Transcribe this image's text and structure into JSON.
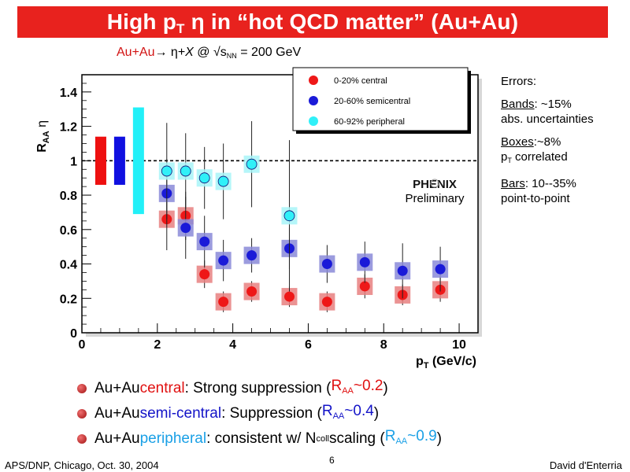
{
  "slide": {
    "title_prefix": "High p",
    "title_sub": "T",
    "title_suffix": " η in “hot QCD matter” (Au+Au)",
    "reaction_aa": "Au+Au",
    "reaction_mid": "→ η+",
    "reaction_x": "X",
    "reaction_at": " @ √s",
    "reaction_sub": "NN",
    "reaction_energy": " = 200 GeV"
  },
  "notes": {
    "errors": "Errors:",
    "bands_key": "Bands",
    "bands_val": ": ~15%",
    "bands_line2": "abs. uncertainties",
    "boxes_key": "Boxes",
    "boxes_val": ":~8%",
    "boxes_line2_p": "p",
    "boxes_line2_sub": "T",
    "boxes_line2_rest": " correlated",
    "bars_key": "Bars",
    "bars_val": ": 10--35%",
    "bars_line2": "point-to-point"
  },
  "bullets": [
    {
      "pre": "Au+Au ",
      "key": "central",
      "mid": ": Strong suppression (",
      "r": "R",
      "rsub": "AA",
      "val": "~0.2",
      "post": ")"
    },
    {
      "pre": "Au+Au ",
      "key": "semi-central",
      "mid": ": Suppression (",
      "r": "R",
      "rsub": "AA",
      "val": "~0.4",
      "post": ")"
    },
    {
      "pre": "Au+Au ",
      "key": "peripheral",
      "mid": ": consistent w/ N",
      "nsub": "coll",
      "mid2": " scaling (",
      "r": "R",
      "rsub": "AA",
      "val": "~0.9",
      "post": ")"
    }
  ],
  "footer": {
    "left": "APS/DNP, Chicago, Oct. 30, 2004",
    "page": "6",
    "right": "David d'Enterria"
  },
  "colors": {
    "title_bg": "#e8221e",
    "central": "#e01010",
    "semicentral": "#1414c8",
    "peripheral": "#1aa0e6"
  },
  "chart_data": {
    "type": "scatter",
    "xlabel_p": "p",
    "xlabel_sub": "T",
    "xlabel_unit": " (GeV/c)",
    "ylabel_r": "R",
    "ylabel_sub": "AA",
    "ylabel_eta": " η",
    "xlim": [
      0,
      10.5
    ],
    "ylim": [
      0,
      1.5
    ],
    "x_ticks": [
      "0",
      "2",
      "4",
      "6",
      "8",
      "10"
    ],
    "y_ticks": [
      "0",
      "0.2",
      "0.4",
      "0.6",
      "0.8",
      "1",
      "1.2",
      "1.4"
    ],
    "reference_line": 1.0,
    "legend_position": "top-right",
    "watermark_logo": "PHENIX",
    "watermark_text": "Preliminary",
    "bands": [
      {
        "series": 0,
        "x": 0.5,
        "ylow": 0.86,
        "yhigh": 1.14
      },
      {
        "series": 1,
        "x": 1.0,
        "ylow": 0.86,
        "yhigh": 1.14
      },
      {
        "series": 2,
        "x": 1.5,
        "ylow": 0.69,
        "yhigh": 1.31
      }
    ],
    "series": [
      {
        "name": "0-20% central",
        "color": "#e01010",
        "x": [
          2.25,
          2.75,
          3.25,
          3.75,
          4.5,
          5.5,
          6.5,
          7.5,
          8.5,
          9.5
        ],
        "y": [
          0.66,
          0.68,
          0.34,
          0.18,
          0.24,
          0.21,
          0.18,
          0.27,
          0.22,
          0.25
        ],
        "err": [
          0.18,
          0.14,
          0.08,
          0.06,
          0.06,
          0.06,
          0.06,
          0.07,
          0.06,
          0.07
        ]
      },
      {
        "name": "20-60% semicentral",
        "color": "#1414c8",
        "x": [
          2.25,
          2.75,
          3.25,
          3.75,
          4.5,
          5.5,
          6.5,
          7.5,
          8.5,
          9.5
        ],
        "y": [
          0.81,
          0.61,
          0.53,
          0.42,
          0.45,
          0.49,
          0.4,
          0.41,
          0.36,
          0.37
        ],
        "err": [
          0.2,
          0.18,
          0.15,
          0.12,
          0.1,
          0.12,
          0.11,
          0.12,
          0.16,
          0.13
        ]
      },
      {
        "name": "60-92% peripheral",
        "color": "#22e8f0",
        "x": [
          2.25,
          2.75,
          3.25,
          3.75,
          4.5,
          5.5
        ],
        "y": [
          0.94,
          0.94,
          0.9,
          0.88,
          0.98,
          0.68
        ],
        "err": [
          0.28,
          0.22,
          0.18,
          0.22,
          0.25,
          0.44
        ]
      }
    ]
  }
}
